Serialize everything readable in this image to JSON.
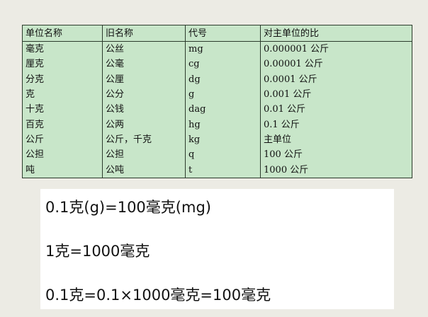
{
  "table": {
    "headers": [
      "单位名称",
      "旧名称",
      "代号",
      "对主单位的比"
    ],
    "rows": [
      [
        "毫克",
        "公丝",
        "mg",
        "0.000001 公斤"
      ],
      [
        "厘克",
        "公毫",
        "cg",
        "0.00001 公斤"
      ],
      [
        "分克",
        "公厘",
        "dg",
        "0.0001 公斤"
      ],
      [
        "克",
        "公分",
        "g",
        "0.001 公斤"
      ],
      [
        "十克",
        "公钱",
        "dag",
        "0.01 公斤"
      ],
      [
        "百克",
        "公两",
        "hg",
        "0.1 公斤"
      ],
      [
        "公斤",
        "公斤，千克",
        "kg",
        "主单位"
      ],
      [
        "公担",
        "公担",
        "q",
        "100 公斤"
      ],
      [
        "吨",
        "公吨",
        "t",
        "1000 公斤"
      ]
    ]
  },
  "notes": [
    "0.1克(g)=100毫克(mg)",
    "1克=1000毫克",
    "0.1克=0.1×1000毫克=100毫克"
  ],
  "colors": {
    "table_bg": "#c8e6c9",
    "page_bg": "#ecebe4"
  }
}
